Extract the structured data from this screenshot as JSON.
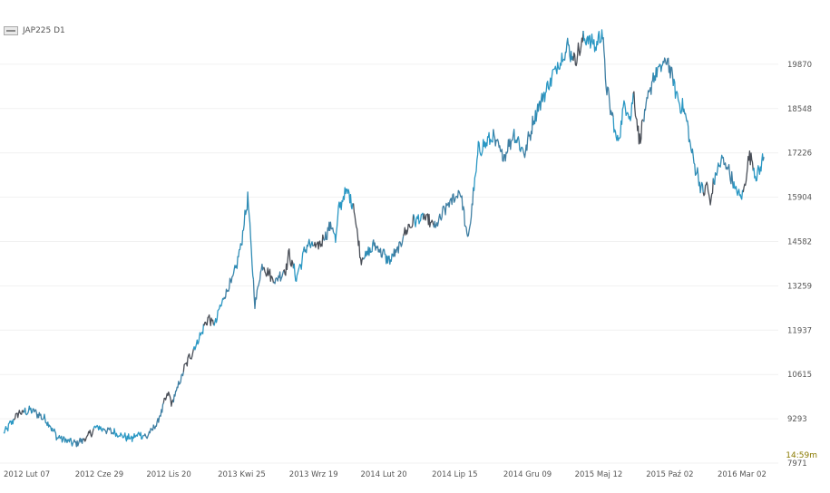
{
  "legend": {
    "label": "JAP225 D1"
  },
  "timer": "14:59m",
  "chart_data": {
    "type": "line",
    "title": "",
    "xlabel": "",
    "ylabel": "",
    "grid": true,
    "ylim": [
      7971,
      21192
    ],
    "y_ticks": [
      7971,
      9293,
      10615,
      11937,
      13259,
      14582,
      15904,
      17226,
      18548,
      19870
    ],
    "x_tick_labels": [
      "2012 Lut 07",
      "2012 Cze 29",
      "2012 Lis 20",
      "2013 Kwi 25",
      "2013 Wrz 19",
      "2014 Lut 20",
      "2014 Lip 15",
      "2014 Gru 09",
      "2015 Maj 12",
      "2015 Paź 02",
      "2016 Mar 02"
    ],
    "x_tick_index": [
      0,
      100,
      200,
      300,
      400,
      500,
      600,
      700,
      800,
      900,
      1000
    ],
    "x_range": [
      0,
      1075
    ],
    "series": [
      {
        "x": [
          0,
          20,
          40,
          60,
          75,
          100,
          115,
          130,
          145,
          160,
          170,
          180,
          190,
          200,
          215,
          230,
          236,
          246,
          256,
          266,
          276,
          286,
          296,
          303,
          312,
          322,
          332,
          342,
          352,
          362,
          380,
          395,
          400,
          410,
          425,
          440,
          460,
          465,
          470,
          480,
          490,
          500,
          510,
          520,
          540,
          555,
          560,
          575,
          590,
          605,
          620,
          640,
          650,
          655,
          665,
          685,
          700,
          715,
          730,
          745,
          760,
          775,
          790,
          800,
          815,
          830,
          838,
          845,
          860,
          870,
          878,
          883,
          890,
          910,
          930,
          945,
          955,
          965,
          980,
          985,
          990,
          995,
          1005,
          1015,
          1025,
          1035,
          1045,
          1055,
          1060,
          1065
        ],
        "y": [
          8850,
          9450,
          9550,
          9250,
          8750,
          8550,
          8700,
          9050,
          8950,
          8850,
          8750,
          8700,
          8850,
          8750,
          9150,
          10050,
          9750,
          10350,
          10950,
          11350,
          11800,
          12300,
          12100,
          12600,
          13100,
          13500,
          14400,
          15900,
          12700,
          13900,
          13400,
          13750,
          14200,
          13500,
          14500,
          14400,
          15100,
          14600,
          15600,
          16100,
          15700,
          14100,
          14200,
          14500,
          14000,
          14400,
          14800,
          15200,
          15300,
          15000,
          15600,
          16100,
          14600,
          15400,
          17300,
          17700,
          17100,
          17800,
          17200,
          18400,
          19100,
          19800,
          20400,
          20000,
          20700,
          20400,
          20900,
          19100,
          17500,
          18700,
          18300,
          19000,
          17600,
          19500,
          20000,
          18800,
          18400,
          17100,
          16000,
          16300,
          15700,
          16400,
          17000,
          16800,
          16100,
          15900,
          17200,
          16500,
          16800,
          17100
        ]
      }
    ]
  }
}
